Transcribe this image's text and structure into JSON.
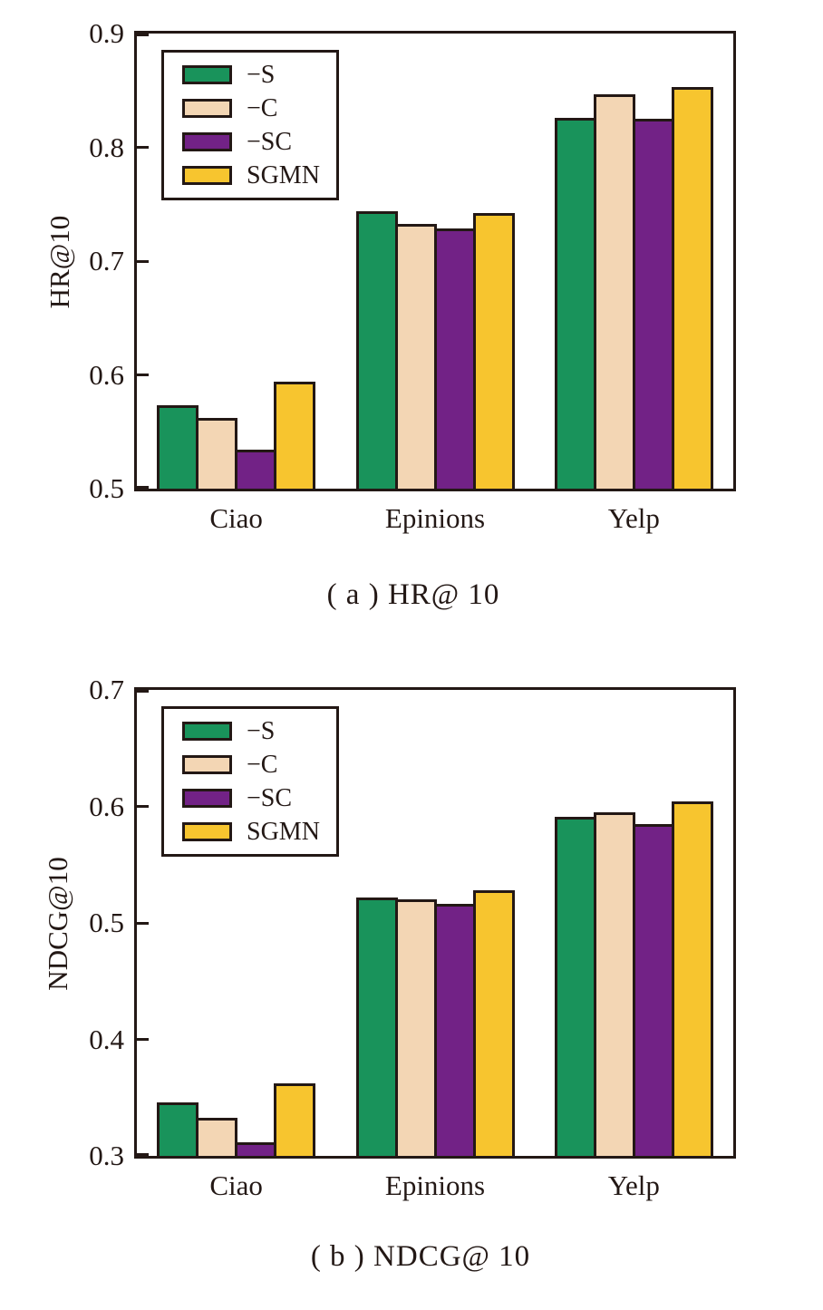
{
  "colors": {
    "axis": "#231815",
    "bar_border": "#231815",
    "text": "#231815",
    "background": "#ffffff"
  },
  "chart_data": [
    {
      "type": "bar",
      "caption": "( a ) HR@ 10",
      "ylabel": "HR@10",
      "xlabel": "",
      "categories": [
        "Ciao",
        "Epinions",
        "Yelp"
      ],
      "series": [
        {
          "name": "−S",
          "color": "#19935b",
          "values": [
            0.573,
            0.744,
            0.826
          ]
        },
        {
          "name": "−C",
          "color": "#f3d6b4",
          "values": [
            0.562,
            0.733,
            0.847
          ]
        },
        {
          "name": "−SC",
          "color": "#722286",
          "values": [
            0.534,
            0.729,
            0.825
          ]
        },
        {
          "name": "SGMN",
          "color": "#f7c52f",
          "values": [
            0.594,
            0.742,
            0.853
          ]
        }
      ],
      "ylim": [
        0.5,
        0.9
      ],
      "yticks": [
        0.5,
        0.6,
        0.7,
        0.8,
        0.9
      ],
      "grid": false,
      "legend_position": "top-left"
    },
    {
      "type": "bar",
      "caption": "( b ) NDCG@ 10",
      "ylabel": "NDCG@10",
      "xlabel": "",
      "categories": [
        "Ciao",
        "Epinions",
        "Yelp"
      ],
      "series": [
        {
          "name": "−S",
          "color": "#19935b",
          "values": [
            0.346,
            0.522,
            0.591
          ]
        },
        {
          "name": "−C",
          "color": "#f3d6b4",
          "values": [
            0.333,
            0.52,
            0.595
          ]
        },
        {
          "name": "−SC",
          "color": "#722286",
          "values": [
            0.312,
            0.516,
            0.585
          ]
        },
        {
          "name": "SGMN",
          "color": "#f7c52f",
          "values": [
            0.362,
            0.528,
            0.604
          ]
        }
      ],
      "ylim": [
        0.3,
        0.7
      ],
      "yticks": [
        0.3,
        0.4,
        0.5,
        0.6,
        0.7
      ],
      "grid": false,
      "legend_position": "top-left"
    }
  ]
}
